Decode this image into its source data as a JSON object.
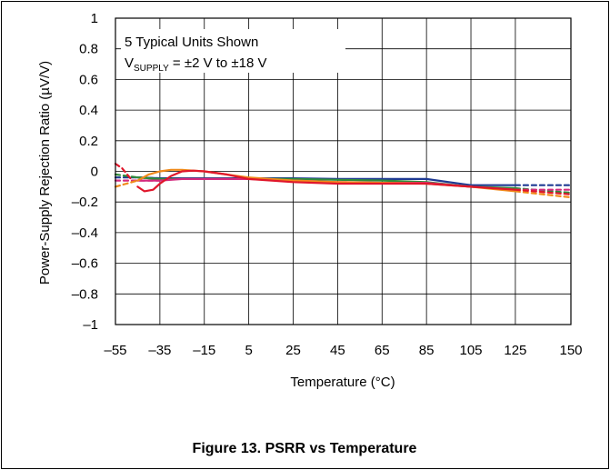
{
  "caption": "Figure 13. PSRR vs Temperature",
  "chart_data": {
    "type": "line",
    "xlabel": "Temperature (°C)",
    "ylabel": "Power-Supply Rejection Ratio (µV/V)",
    "xlim": [
      -55,
      150
    ],
    "ylim": [
      -1,
      1
    ],
    "x_ticks": [
      -55,
      -35,
      -15,
      5,
      25,
      45,
      65,
      85,
      105,
      125,
      150
    ],
    "x_tick_labels": [
      "–55",
      "–35",
      "–15",
      "5",
      "25",
      "45",
      "65",
      "85",
      "105",
      "125",
      "150"
    ],
    "y_ticks": [
      1,
      0.8,
      0.6,
      0.4,
      0.2,
      0,
      -0.2,
      -0.4,
      -0.6,
      -0.8,
      -1
    ],
    "y_tick_labels": [
      "1",
      "0.8",
      "0.6",
      "0.4",
      "0.2",
      "0",
      "–0.2",
      "–0.4",
      "–0.6",
      "–0.8",
      "–1"
    ],
    "grid": true,
    "annotation": {
      "line1": "5 Typical Units Shown",
      "line2_prefix": "V",
      "line2_sub": "SUPPLY",
      "line2_suffix": " = ±2 V to ±18 V"
    },
    "dashed_from_x": 125,
    "series": [
      {
        "color": "#1f3a93",
        "x": [
          -55,
          -45,
          -35,
          -25,
          -15,
          5,
          25,
          45,
          65,
          85,
          105,
          125,
          150
        ],
        "y": [
          -0.04,
          -0.04,
          -0.045,
          -0.045,
          -0.045,
          -0.045,
          -0.045,
          -0.05,
          -0.05,
          -0.05,
          -0.09,
          -0.09,
          -0.09
        ]
      },
      {
        "color": "#2e8b3a",
        "x": [
          -55,
          -45,
          -35,
          -25,
          -15,
          5,
          25,
          45,
          65,
          85,
          105,
          125,
          150
        ],
        "y": [
          -0.02,
          -0.04,
          -0.05,
          -0.05,
          -0.05,
          -0.05,
          -0.05,
          -0.055,
          -0.06,
          -0.07,
          -0.1,
          -0.11,
          -0.14
        ]
      },
      {
        "color": "#d42a7e",
        "x": [
          -55,
          -45,
          -35,
          -25,
          -15,
          5,
          25,
          45,
          65,
          85,
          105,
          125,
          150
        ],
        "y": [
          -0.06,
          -0.06,
          -0.06,
          -0.05,
          -0.05,
          -0.05,
          -0.06,
          -0.07,
          -0.075,
          -0.075,
          -0.1,
          -0.12,
          -0.12
        ]
      },
      {
        "color": "#f08a1a",
        "x": [
          -55,
          -50,
          -45,
          -40,
          -35,
          -30,
          -25,
          -20,
          -15,
          -5,
          5,
          25,
          45,
          65,
          85,
          105,
          125,
          150
        ],
        "y": [
          -0.1,
          -0.08,
          -0.06,
          -0.02,
          0.0,
          0.01,
          0.01,
          0.005,
          0.0,
          -0.02,
          -0.04,
          -0.06,
          -0.07,
          -0.075,
          -0.08,
          -0.1,
          -0.13,
          -0.17
        ]
      },
      {
        "color": "#e0162b",
        "x": [
          -55,
          -52,
          -48,
          -45,
          -42,
          -38,
          -35,
          -30,
          -25,
          -20,
          -15,
          -5,
          5,
          25,
          45,
          65,
          85,
          105,
          125,
          150
        ],
        "y": [
          0.05,
          0.02,
          -0.05,
          -0.1,
          -0.13,
          -0.12,
          -0.08,
          -0.03,
          0.0,
          0.005,
          0.0,
          -0.02,
          -0.05,
          -0.07,
          -0.08,
          -0.08,
          -0.08,
          -0.1,
          -0.12,
          -0.15
        ]
      }
    ]
  }
}
